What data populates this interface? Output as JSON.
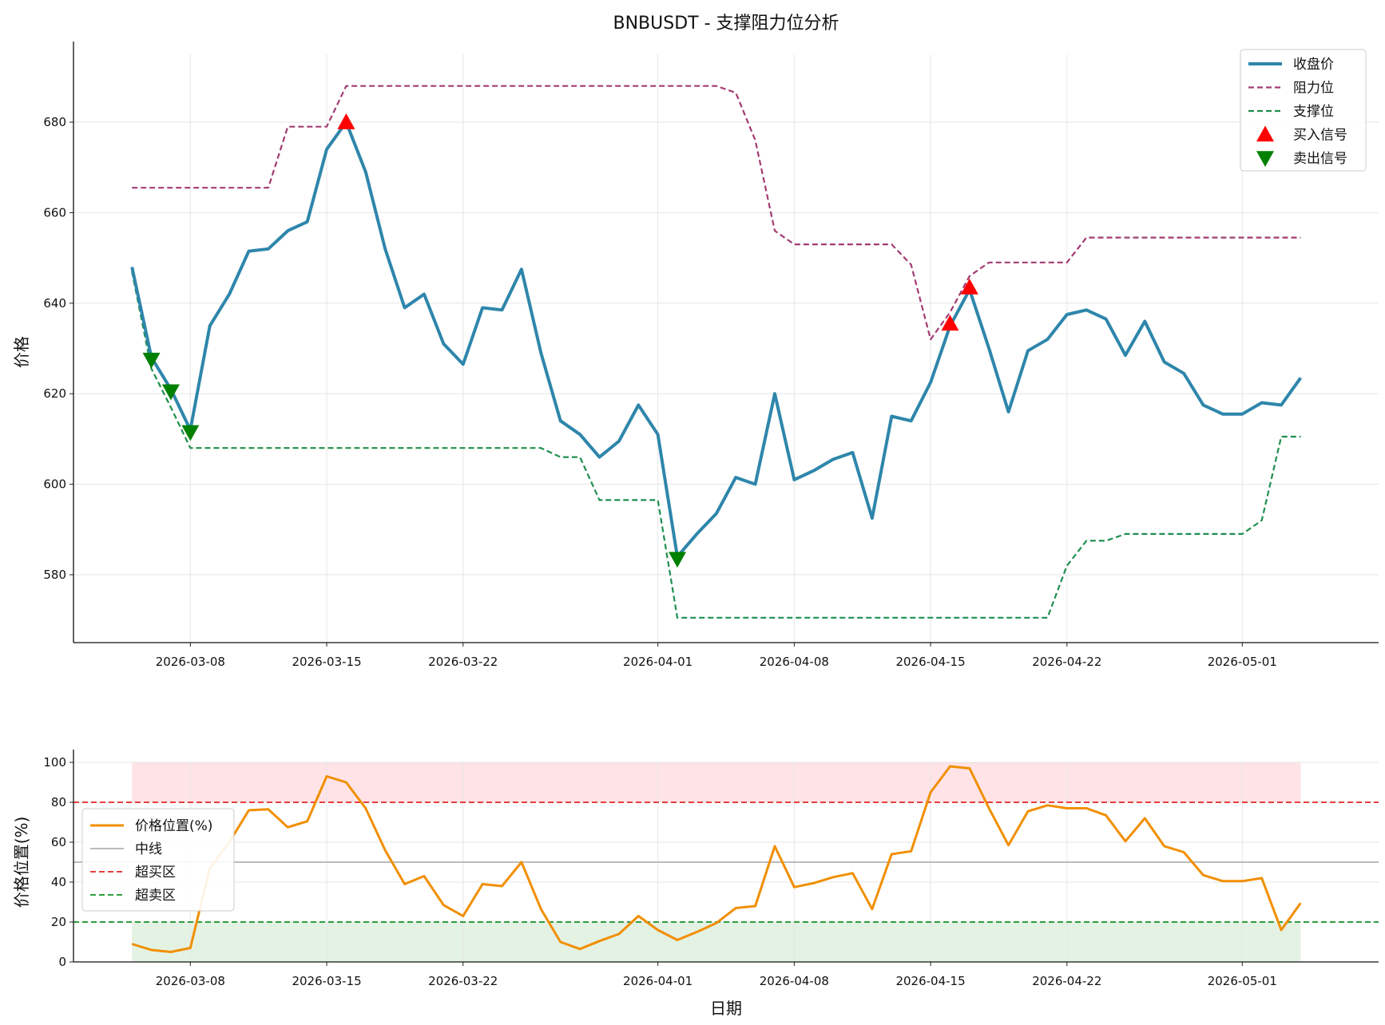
{
  "chart_data": [
    {
      "type": "line",
      "title": "BNBUSDT - 支撑阻力位分析",
      "ylabel": "价格",
      "xlabel": "",
      "ylim": [
        565,
        695
      ],
      "y_ticks": [
        580,
        600,
        620,
        640,
        660,
        680
      ],
      "x_start": "2026-03-05",
      "x_range": [
        "2026-03-02",
        "2026-05-08"
      ],
      "x_ticks": [
        "2026-03-08",
        "2026-03-15",
        "2026-03-22",
        "2026-04-01",
        "2026-04-08",
        "2026-04-15",
        "2026-04-22",
        "2026-05-01"
      ],
      "grid": true,
      "legend_position": "top-right",
      "colors": {
        "close": "#2E86AB",
        "resistance": "#A23B72",
        "support": "#1E8F4E",
        "buy": "#FF0000",
        "sell": "#008000"
      },
      "series": [
        {
          "name": "收盘价",
          "key": "close",
          "style": "solid",
          "values": [
            648,
            628,
            621,
            612,
            635,
            642,
            651.5,
            652,
            656,
            658,
            674,
            680,
            669,
            652,
            639,
            642,
            631,
            626.5,
            639,
            638.5,
            647.5,
            629,
            614,
            611,
            606,
            609.5,
            617.5,
            611,
            584,
            589,
            593.5,
            601.5,
            600,
            620,
            601,
            603,
            605.5,
            607,
            592.5,
            615,
            614,
            622.5,
            635,
            643,
            630,
            616,
            629.5,
            632,
            637.5,
            638.5,
            636.5,
            628.5,
            636,
            627,
            624.5,
            617.5,
            615.5,
            615.5,
            618,
            617.5,
            623.5
          ]
        },
        {
          "name": "阻力位",
          "key": "resistance",
          "style": "dashed",
          "values": [
            665.5,
            665.5,
            665.5,
            665.5,
            665.5,
            665.5,
            665.5,
            665.5,
            679,
            679,
            679,
            688,
            688,
            688,
            688,
            688,
            688,
            688,
            688,
            688,
            688,
            688,
            688,
            688,
            688,
            688,
            688,
            688,
            688,
            688,
            688,
            686.5,
            676,
            656,
            653,
            653,
            653,
            653,
            653,
            653,
            648.5,
            632,
            638,
            646,
            649,
            649,
            649,
            649,
            649,
            654.5,
            654.5,
            654.5,
            654.5,
            654.5,
            654.5,
            654.5,
            654.5,
            654.5,
            654.5,
            654.5,
            654.5
          ]
        },
        {
          "name": "支撑位",
          "key": "support",
          "style": "dashed",
          "values": [
            647,
            625.5,
            617,
            608,
            608,
            608,
            608,
            608,
            608,
            608,
            608,
            608,
            608,
            608,
            608,
            608,
            608,
            608,
            608,
            608,
            608,
            608,
            606,
            606,
            596.5,
            596.5,
            596.5,
            596.5,
            570.5,
            570.5,
            570.5,
            570.5,
            570.5,
            570.5,
            570.5,
            570.5,
            570.5,
            570.5,
            570.5,
            570.5,
            570.5,
            570.5,
            570.5,
            570.5,
            570.5,
            570.5,
            570.5,
            570.5,
            582,
            587.5,
            587.5,
            589,
            589,
            589,
            589,
            589,
            589,
            589,
            592,
            610.5,
            610.5
          ]
        }
      ],
      "signals": [
        {
          "name": "买入信号",
          "key": "buy",
          "marker": "triangle-up",
          "points": [
            [
              11,
              680
            ],
            [
              42,
              635.5
            ],
            [
              43,
              643.5
            ]
          ]
        },
        {
          "name": "卖出信号",
          "key": "sell",
          "marker": "triangle-down",
          "points": [
            [
              1,
              627.5
            ],
            [
              2,
              620.5
            ],
            [
              3,
              611.5
            ],
            [
              28,
              583.5
            ]
          ]
        }
      ]
    },
    {
      "type": "line",
      "title": "",
      "ylabel": "价格位置(%)",
      "xlabel": "日期",
      "ylim": [
        0,
        100
      ],
      "y_ticks": [
        0,
        20,
        40,
        60,
        80,
        100
      ],
      "x_start": "2026-03-05",
      "x_range": [
        "2026-03-02",
        "2026-05-08"
      ],
      "x_ticks": [
        "2026-03-08",
        "2026-03-15",
        "2026-03-22",
        "2026-04-01",
        "2026-04-08",
        "2026-04-15",
        "2026-04-22",
        "2026-05-01"
      ],
      "grid": true,
      "legend_position": "center-left",
      "colors": {
        "position": "#F18F01",
        "mid": "#BBBBBB",
        "overbought": "#E83E3E",
        "oversold": "#2E9E3E",
        "overbought_fill": "#FFE3E6",
        "oversold_fill": "#E4F2E4"
      },
      "series": [
        {
          "name": "价格位置(%)",
          "key": "position",
          "style": "solid",
          "values": [
            9,
            6,
            5,
            7,
            47,
            60,
            76,
            76.5,
            67.5,
            70.5,
            93,
            90,
            77,
            56,
            39,
            43,
            28.5,
            23,
            39,
            38,
            50,
            26.5,
            10,
            6.5,
            10.5,
            14,
            23,
            16,
            11,
            15,
            19.5,
            27,
            28,
            58,
            37.5,
            39.5,
            42.5,
            44.5,
            26.5,
            54,
            55.5,
            85,
            98,
            97,
            77,
            58.5,
            75.5,
            78.5,
            77,
            77,
            73.5,
            60.5,
            72,
            58,
            55,
            43.5,
            40.5,
            40.5,
            42,
            16,
            29.5
          ]
        }
      ],
      "reference_lines": [
        {
          "name": "中线",
          "key": "mid",
          "value": 50,
          "style": "solid"
        },
        {
          "name": "超买区",
          "key": "overbought",
          "value": 80,
          "style": "dashed"
        },
        {
          "name": "超卖区",
          "key": "oversold",
          "value": 20,
          "style": "dashed"
        }
      ],
      "bands": [
        {
          "key": "overbought_fill",
          "from": 80,
          "to": 100
        },
        {
          "key": "oversold_fill",
          "from": 0,
          "to": 20
        }
      ]
    }
  ]
}
